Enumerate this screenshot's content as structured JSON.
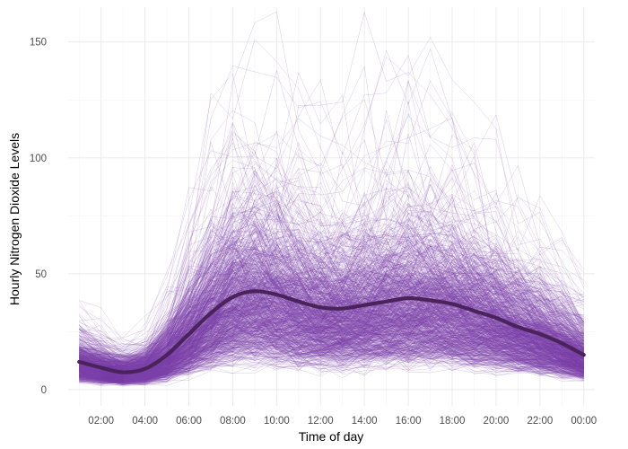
{
  "chart_data": {
    "type": "line",
    "xlabel": "Time of day",
    "ylabel": "Hourly Nitrogen Dioxide Levels",
    "x_ticks": [
      "02:00",
      "04:00",
      "06:00",
      "08:00",
      "10:00",
      "12:00",
      "14:00",
      "16:00",
      "18:00",
      "20:00",
      "22:00",
      "00:00"
    ],
    "x_tick_hours": [
      2,
      4,
      6,
      8,
      10,
      12,
      14,
      16,
      18,
      20,
      22,
      24
    ],
    "y_ticks": [
      0,
      50,
      100,
      150
    ],
    "xlim": [
      0.5,
      24.5
    ],
    "ylim": [
      -7,
      165
    ],
    "grid": true,
    "legend": "none",
    "colors": {
      "individual_lines": "#7b3fa6",
      "mean_line": "#4a235a"
    },
    "individual_series_count_approx": 1000,
    "individual_series_note_range": {
      "y_min": 0,
      "y_max": 163
    },
    "mean_series": {
      "x": [
        1,
        2,
        3,
        4,
        5,
        6,
        7,
        8,
        9,
        10,
        11,
        12,
        13,
        14,
        15,
        16,
        17,
        18,
        19,
        20,
        21,
        22,
        23,
        24
      ],
      "values": [
        12,
        9.5,
        7.5,
        9,
        15,
        24,
        33,
        40,
        42.5,
        41,
        38,
        35.5,
        35,
        36.5,
        38,
        39.5,
        38.5,
        37,
        34,
        31,
        27,
        24,
        20,
        15
      ]
    }
  }
}
